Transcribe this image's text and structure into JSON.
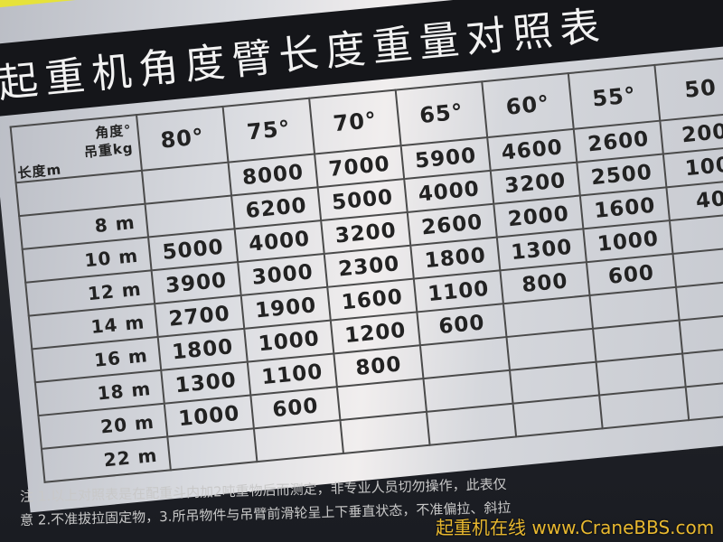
{
  "title": "起重机角度臂长度重量对照表",
  "corner": {
    "angle": "角度°",
    "load": "吊重kg",
    "length": "长度m"
  },
  "angles": [
    "80°",
    "75°",
    "70°",
    "65°",
    "60°",
    "55°",
    "50"
  ],
  "rows": [
    {
      "label": "",
      "values": [
        "",
        "8000",
        "7000",
        "5900",
        "4600",
        "2600",
        "200"
      ]
    },
    {
      "label": "8 m",
      "values": [
        "",
        "6200",
        "5000",
        "4000",
        "3200",
        "2500",
        "100"
      ]
    },
    {
      "label": "10 m",
      "values": [
        "5000",
        "4000",
        "3200",
        "2600",
        "2000",
        "1600",
        "40"
      ]
    },
    {
      "label": "12 m",
      "values": [
        "3900",
        "3000",
        "2300",
        "1800",
        "1300",
        "1000",
        ""
      ]
    },
    {
      "label": "14 m",
      "values": [
        "2700",
        "1900",
        "1600",
        "1100",
        "800",
        "600",
        ""
      ]
    },
    {
      "label": "16 m",
      "values": [
        "1800",
        "1000",
        "1200",
        "600",
        "",
        "",
        ""
      ]
    },
    {
      "label": "18 m",
      "values": [
        "1300",
        "1100",
        "800",
        "",
        "",
        "",
        ""
      ]
    },
    {
      "label": "20 m",
      "values": [
        "1000",
        "600",
        "",
        "",
        "",
        "",
        ""
      ]
    },
    {
      "label": "22 m",
      "values": [
        "",
        "",
        "",
        "",
        "",
        "",
        ""
      ]
    }
  ],
  "notes": [
    "注 1.以上对照表是在配重斗内加2吨重物后而测定，非专业人员切勿操作，此表仅",
    "意 2.不准拔拉固定物，3.所吊物件与吊臂前滑轮呈上下垂直状态，不准偏拉、斜拉"
  ],
  "watermark": "起重机在线 www.CraneBBS.com"
}
